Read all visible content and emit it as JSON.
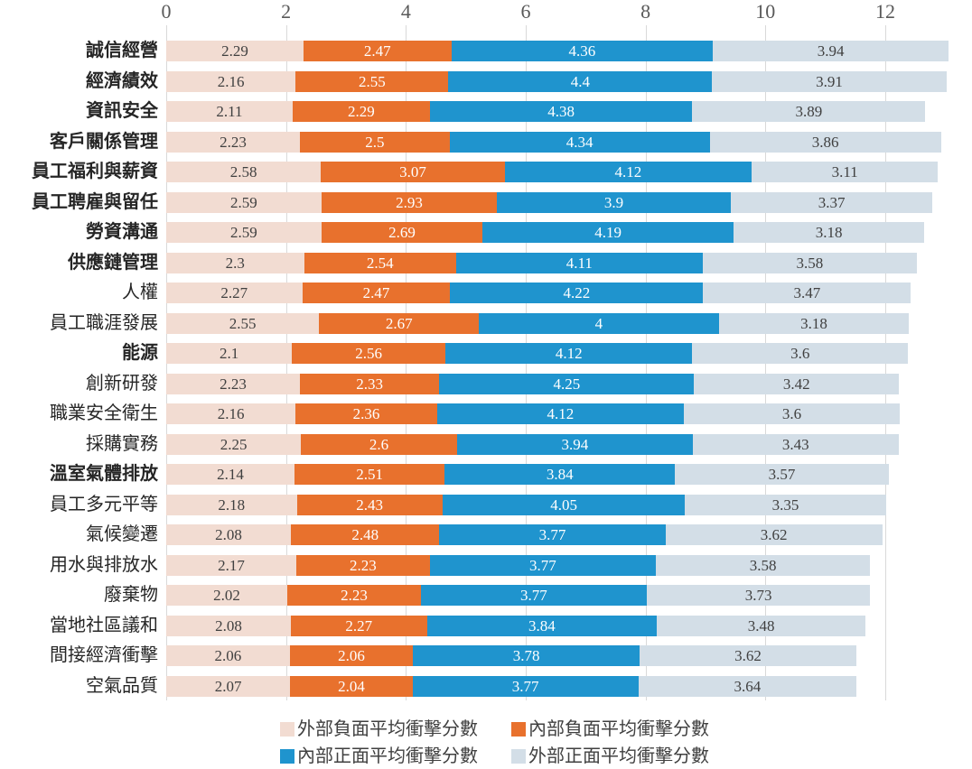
{
  "chart_data": {
    "type": "bar",
    "orientation": "horizontal",
    "stacked": true,
    "title": "",
    "xlabel": "",
    "ylabel": "",
    "axis_position": "top",
    "xlim": [
      0,
      13.45
    ],
    "x_ticks": [
      0,
      2,
      4,
      6,
      8,
      10,
      12
    ],
    "grid": true,
    "gridline_color": "#d9d9d9",
    "axis_text_color": "#595959",
    "legend_position": "bottom",
    "categories": [
      "誠信經營",
      "經濟績效",
      "資訊安全",
      "客戶關係管理",
      "員工福利與薪資",
      "員工聘雇與留任",
      "勞資溝通",
      "供應鏈管理",
      "人權",
      "員工職涯發展",
      "能源",
      "創新研發",
      "職業安全衛生",
      "採購實務",
      "溫室氣體排放",
      "員工多元平等",
      "氣候變遷",
      "用水與排放水",
      "廢棄物",
      "當地社區議和",
      "間接經濟衝擊",
      "空氣品質"
    ],
    "category_bold": [
      true,
      true,
      true,
      true,
      true,
      true,
      true,
      true,
      false,
      false,
      true,
      false,
      false,
      false,
      true,
      false,
      false,
      false,
      false,
      false,
      false,
      false
    ],
    "series": [
      {
        "name": "外部負面平均衝擊分數",
        "color": "#f2dcd2",
        "value_text_color": "#404040",
        "values": [
          2.29,
          2.16,
          2.11,
          2.23,
          2.58,
          2.59,
          2.59,
          2.3,
          2.27,
          2.55,
          2.1,
          2.23,
          2.16,
          2.25,
          2.14,
          2.18,
          2.08,
          2.17,
          2.02,
          2.08,
          2.06,
          2.07
        ]
      },
      {
        "name": "內部負面平均衝擊分數",
        "color": "#e8712d",
        "value_text_color": "#ffffff",
        "values": [
          2.47,
          2.55,
          2.29,
          2.5,
          3.07,
          2.93,
          2.69,
          2.54,
          2.47,
          2.67,
          2.56,
          2.33,
          2.36,
          2.6,
          2.51,
          2.43,
          2.48,
          2.23,
          2.23,
          2.27,
          2.06,
          2.04
        ]
      },
      {
        "name": "內部正面平均衝擊分數",
        "color": "#1f94ce",
        "value_text_color": "#ffffff",
        "values": [
          4.36,
          4.4,
          4.38,
          4.34,
          4.12,
          3.9,
          4.19,
          4.11,
          4.22,
          4,
          4.12,
          4.25,
          4.12,
          3.94,
          3.84,
          4.05,
          3.77,
          3.77,
          3.77,
          3.84,
          3.78,
          3.77
        ]
      },
      {
        "name": "外部正面平均衝擊分數",
        "color": "#d3dee7",
        "value_text_color": "#404040",
        "values": [
          3.94,
          3.91,
          3.89,
          3.86,
          3.11,
          3.37,
          3.18,
          3.58,
          3.47,
          3.18,
          3.6,
          3.42,
          3.6,
          3.43,
          3.57,
          3.35,
          3.62,
          3.58,
          3.73,
          3.48,
          3.62,
          3.64
        ]
      }
    ],
    "legend_rows": [
      [
        "外部負面平均衝擊分數",
        "內部負面平均衝擊分數"
      ],
      [
        "內部正面平均衝擊分數",
        "外部正面平均衝擊分數"
      ]
    ]
  }
}
